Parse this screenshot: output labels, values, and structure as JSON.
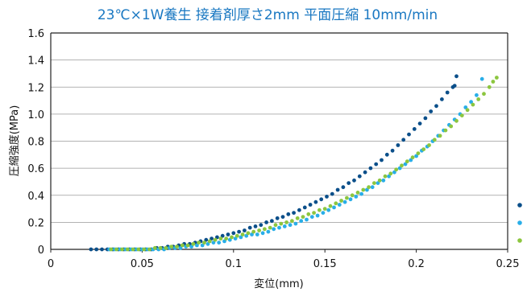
{
  "chart_data": {
    "type": "scatter",
    "title": "23℃×1W養生 接着剤厚さ2mm 平面圧縮 10mm/min",
    "title_color": "#1a78c2",
    "xlabel": "変位(mm)",
    "ylabel": "圧縮強度(MPa)",
    "xlim": [
      0,
      0.25
    ],
    "ylim": [
      0,
      1.6
    ],
    "xticks": [
      "0",
      "0.05",
      "0.1",
      "0.15",
      "0.2",
      "0.25"
    ],
    "yticks": [
      "0",
      "0.2",
      "0.4",
      "0.6",
      "0.8",
      "1.0",
      "1.2",
      "1.4",
      "1.6"
    ],
    "grid": "horizontal",
    "legend_position": "right",
    "series": [
      {
        "color": "#0b4f8a",
        "x": [
          0.022,
          0.025,
          0.028,
          0.031,
          0.034,
          0.037,
          0.04,
          0.043,
          0.046,
          0.049,
          0.052,
          0.055,
          0.058,
          0.061,
          0.064,
          0.067,
          0.07,
          0.073,
          0.076,
          0.079,
          0.082,
          0.085,
          0.088,
          0.091,
          0.094,
          0.097,
          0.1,
          0.103,
          0.106,
          0.109,
          0.112,
          0.115,
          0.118,
          0.121,
          0.124,
          0.127,
          0.13,
          0.133,
          0.136,
          0.139,
          0.142,
          0.145,
          0.148,
          0.151,
          0.154,
          0.157,
          0.16,
          0.163,
          0.166,
          0.169,
          0.172,
          0.175,
          0.178,
          0.181,
          0.184,
          0.187,
          0.19,
          0.193,
          0.196,
          0.199,
          0.202,
          0.205,
          0.208,
          0.211,
          0.214,
          0.217,
          0.22,
          0.221,
          0.222
        ],
        "y": [
          0,
          0,
          0,
          0,
          0,
          0,
          0,
          0,
          0,
          0,
          0,
          0,
          0.01,
          0.01,
          0.02,
          0.02,
          0.03,
          0.04,
          0.04,
          0.05,
          0.06,
          0.07,
          0.08,
          0.09,
          0.1,
          0.11,
          0.12,
          0.13,
          0.14,
          0.16,
          0.17,
          0.18,
          0.2,
          0.21,
          0.23,
          0.24,
          0.26,
          0.27,
          0.29,
          0.31,
          0.33,
          0.35,
          0.37,
          0.39,
          0.41,
          0.44,
          0.46,
          0.49,
          0.51,
          0.54,
          0.57,
          0.6,
          0.63,
          0.66,
          0.7,
          0.73,
          0.77,
          0.81,
          0.85,
          0.89,
          0.93,
          0.97,
          1.02,
          1.06,
          1.11,
          1.16,
          1.2,
          1.21,
          1.28
        ]
      },
      {
        "color": "#29aee8",
        "x": [
          0.032,
          0.035,
          0.038,
          0.041,
          0.044,
          0.047,
          0.05,
          0.053,
          0.056,
          0.059,
          0.062,
          0.065,
          0.068,
          0.071,
          0.074,
          0.077,
          0.08,
          0.083,
          0.086,
          0.089,
          0.092,
          0.095,
          0.098,
          0.101,
          0.104,
          0.107,
          0.11,
          0.113,
          0.116,
          0.119,
          0.122,
          0.125,
          0.128,
          0.131,
          0.134,
          0.137,
          0.14,
          0.143,
          0.146,
          0.149,
          0.152,
          0.155,
          0.158,
          0.161,
          0.164,
          0.167,
          0.17,
          0.173,
          0.176,
          0.179,
          0.182,
          0.185,
          0.188,
          0.191,
          0.194,
          0.197,
          0.2,
          0.203,
          0.206,
          0.209,
          0.212,
          0.215,
          0.218,
          0.221,
          0.224,
          0.227,
          0.23,
          0.233,
          0.236
        ],
        "y": [
          0,
          0,
          0,
          0,
          0,
          0,
          0,
          0,
          0,
          0,
          0,
          0.01,
          0.01,
          0.01,
          0.02,
          0.02,
          0.03,
          0.03,
          0.04,
          0.05,
          0.05,
          0.06,
          0.07,
          0.08,
          0.09,
          0.1,
          0.11,
          0.11,
          0.12,
          0.13,
          0.15,
          0.16,
          0.17,
          0.18,
          0.19,
          0.21,
          0.22,
          0.24,
          0.25,
          0.27,
          0.29,
          0.31,
          0.33,
          0.35,
          0.37,
          0.39,
          0.41,
          0.44,
          0.46,
          0.49,
          0.51,
          0.54,
          0.57,
          0.6,
          0.63,
          0.66,
          0.69,
          0.73,
          0.76,
          0.8,
          0.84,
          0.88,
          0.92,
          0.96,
          1.0,
          1.05,
          1.09,
          1.14,
          1.26
        ]
      },
      {
        "color": "#8cc63f",
        "x": [
          0.033,
          0.036,
          0.039,
          0.042,
          0.045,
          0.048,
          0.051,
          0.054,
          0.057,
          0.06,
          0.063,
          0.066,
          0.069,
          0.072,
          0.075,
          0.078,
          0.081,
          0.084,
          0.087,
          0.09,
          0.093,
          0.096,
          0.099,
          0.102,
          0.105,
          0.108,
          0.111,
          0.114,
          0.117,
          0.12,
          0.123,
          0.126,
          0.129,
          0.132,
          0.135,
          0.138,
          0.141,
          0.144,
          0.147,
          0.15,
          0.153,
          0.156,
          0.159,
          0.162,
          0.165,
          0.168,
          0.171,
          0.174,
          0.177,
          0.18,
          0.183,
          0.186,
          0.189,
          0.192,
          0.195,
          0.198,
          0.201,
          0.204,
          0.207,
          0.21,
          0.213,
          0.216,
          0.219,
          0.222,
          0.225,
          0.228,
          0.231,
          0.234,
          0.237,
          0.24,
          0.242,
          0.244
        ],
        "y": [
          0,
          0,
          0,
          0,
          0,
          0,
          0,
          0,
          0.01,
          0.01,
          0.01,
          0.02,
          0.02,
          0.03,
          0.03,
          0.04,
          0.05,
          0.05,
          0.06,
          0.07,
          0.08,
          0.08,
          0.09,
          0.1,
          0.11,
          0.12,
          0.13,
          0.14,
          0.15,
          0.16,
          0.18,
          0.19,
          0.2,
          0.21,
          0.23,
          0.24,
          0.26,
          0.27,
          0.29,
          0.3,
          0.32,
          0.34,
          0.36,
          0.38,
          0.4,
          0.42,
          0.44,
          0.46,
          0.49,
          0.51,
          0.54,
          0.56,
          0.59,
          0.62,
          0.65,
          0.68,
          0.71,
          0.74,
          0.77,
          0.81,
          0.84,
          0.88,
          0.91,
          0.95,
          0.99,
          1.03,
          1.07,
          1.11,
          1.15,
          1.2,
          1.24,
          1.27
        ]
      }
    ]
  }
}
